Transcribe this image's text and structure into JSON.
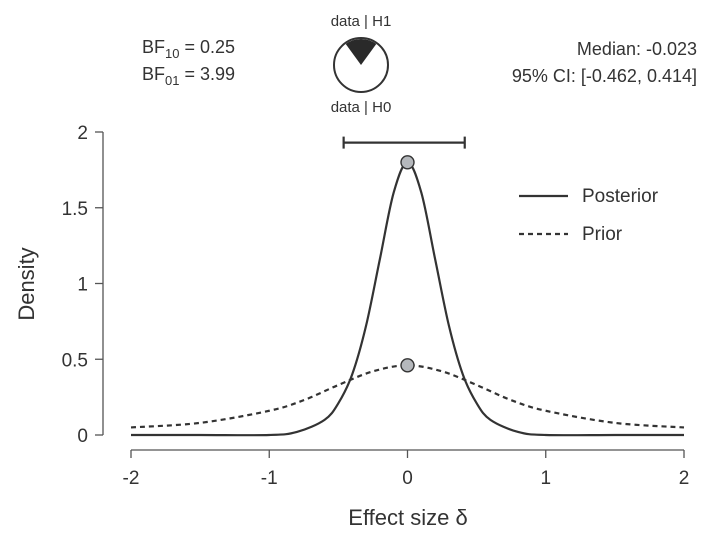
{
  "chart_data": {
    "type": "line",
    "xlabel": "Effect size δ",
    "ylabel": "Density",
    "xlim": [
      -2,
      2
    ],
    "ylim": [
      0,
      2
    ],
    "x_ticks": [
      "-2",
      "-1",
      "0",
      "1",
      "2"
    ],
    "y_ticks": [
      "0",
      "0.5",
      "1",
      "1.5",
      "2"
    ],
    "legend": {
      "position": "top-right",
      "entries": [
        "Posterior",
        "Prior"
      ]
    },
    "series": [
      {
        "name": "Posterior",
        "style": "solid",
        "x": [
          -2,
          -1.5,
          -1,
          -0.8,
          -0.6,
          -0.5,
          -0.4,
          -0.3,
          -0.2,
          -0.1,
          0,
          0.1,
          0.2,
          0.3,
          0.4,
          0.5,
          0.6,
          0.8,
          1,
          1.5,
          2
        ],
        "y": [
          0,
          0,
          0,
          0.02,
          0.1,
          0.21,
          0.4,
          0.72,
          1.16,
          1.6,
          1.8,
          1.6,
          1.16,
          0.72,
          0.4,
          0.21,
          0.1,
          0.02,
          0,
          0,
          0
        ]
      },
      {
        "name": "Prior",
        "style": "dashed",
        "x": [
          -2,
          -1.5,
          -1,
          -0.75,
          -0.5,
          -0.25,
          0,
          0.25,
          0.5,
          0.75,
          1,
          1.5,
          2
        ],
        "y": [
          0.05,
          0.08,
          0.16,
          0.23,
          0.33,
          0.42,
          0.46,
          0.42,
          0.33,
          0.23,
          0.16,
          0.08,
          0.05
        ]
      }
    ],
    "points": [
      {
        "series": "Posterior",
        "x": 0,
        "y": 1.8
      },
      {
        "series": "Prior",
        "x": 0,
        "y": 0.46
      }
    ],
    "credible_interval": [
      -0.462,
      0.414
    ],
    "ci_bar_y": 1.93,
    "pie": {
      "h1_fraction": 0.2,
      "label_top": "data | H1",
      "label_bottom": "data | H0"
    },
    "stats": {
      "bf10_label": "BF",
      "bf10_sub": "10",
      "bf10_value": " = 0.25",
      "bf01_label": "BF",
      "bf01_sub": "01",
      "bf01_value": " = 3.99",
      "median": "Median: -0.023",
      "ci": "95% CI: [-0.462, 0.414]"
    },
    "colors": {
      "line": "#333333",
      "point_fill": "#b5b8bc",
      "pie_dark": "#2a2a2a"
    }
  }
}
